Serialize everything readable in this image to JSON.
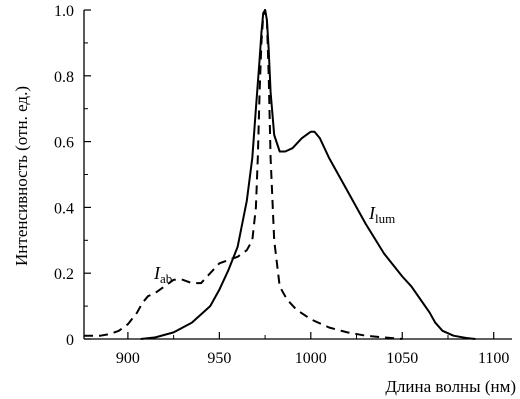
{
  "chart_data": {
    "type": "line",
    "xlabel": "Длина волны (нм)",
    "ylabel": "Интенсивность (отн. ед.)",
    "xlim": [
      876,
      1110
    ],
    "ylim": [
      0,
      1.0
    ],
    "x_ticks": [
      900,
      950,
      1000,
      1050,
      1100
    ],
    "y_ticks": [
      0,
      0.2,
      0.4,
      0.6,
      0.8,
      1.0
    ],
    "x_tick_labels": [
      "900",
      "950",
      "1000",
      "1050",
      "1100"
    ],
    "y_tick_labels": [
      "0",
      "0.2",
      "0.4",
      "0.6",
      "0.8",
      "1.0"
    ],
    "grid": false,
    "series": [
      {
        "name": "I_lum",
        "label_main": "I",
        "label_sub": "lum",
        "style": "solid",
        "x": [
          907,
          915,
          925,
          935,
          945,
          950,
          955,
          960,
          965,
          968,
          970,
          972,
          973,
          974,
          975,
          976,
          977,
          978,
          980,
          983,
          986,
          990,
          995,
          1000,
          1002,
          1005,
          1010,
          1020,
          1030,
          1040,
          1050,
          1055,
          1060,
          1065,
          1068,
          1072,
          1078,
          1085,
          1090
        ],
        "y": [
          0.0,
          0.005,
          0.02,
          0.05,
          0.1,
          0.15,
          0.21,
          0.28,
          0.42,
          0.55,
          0.7,
          0.85,
          0.93,
          0.99,
          1.0,
          0.97,
          0.88,
          0.75,
          0.62,
          0.57,
          0.57,
          0.58,
          0.61,
          0.63,
          0.63,
          0.61,
          0.55,
          0.45,
          0.35,
          0.26,
          0.19,
          0.16,
          0.12,
          0.08,
          0.05,
          0.025,
          0.01,
          0.003,
          0.0
        ]
      },
      {
        "name": "I_ab",
        "label_main": "I",
        "label_sub": "ab",
        "style": "dashed",
        "x": [
          876,
          885,
          890,
          895,
          900,
          905,
          908,
          911,
          915,
          920,
          925,
          930,
          935,
          940,
          945,
          950,
          955,
          960,
          965,
          968,
          970,
          971,
          972,
          973,
          974,
          975,
          976,
          977,
          978,
          980,
          983,
          987,
          992,
          1000,
          1010,
          1020,
          1030,
          1040,
          1050
        ],
        "y": [
          0.01,
          0.01,
          0.015,
          0.025,
          0.045,
          0.08,
          0.11,
          0.13,
          0.14,
          0.16,
          0.18,
          0.18,
          0.17,
          0.17,
          0.2,
          0.23,
          0.24,
          0.25,
          0.27,
          0.3,
          0.4,
          0.55,
          0.75,
          0.9,
          0.98,
          1.0,
          0.97,
          0.8,
          0.55,
          0.3,
          0.16,
          0.12,
          0.09,
          0.06,
          0.035,
          0.02,
          0.01,
          0.005,
          0.0
        ]
      }
    ]
  }
}
